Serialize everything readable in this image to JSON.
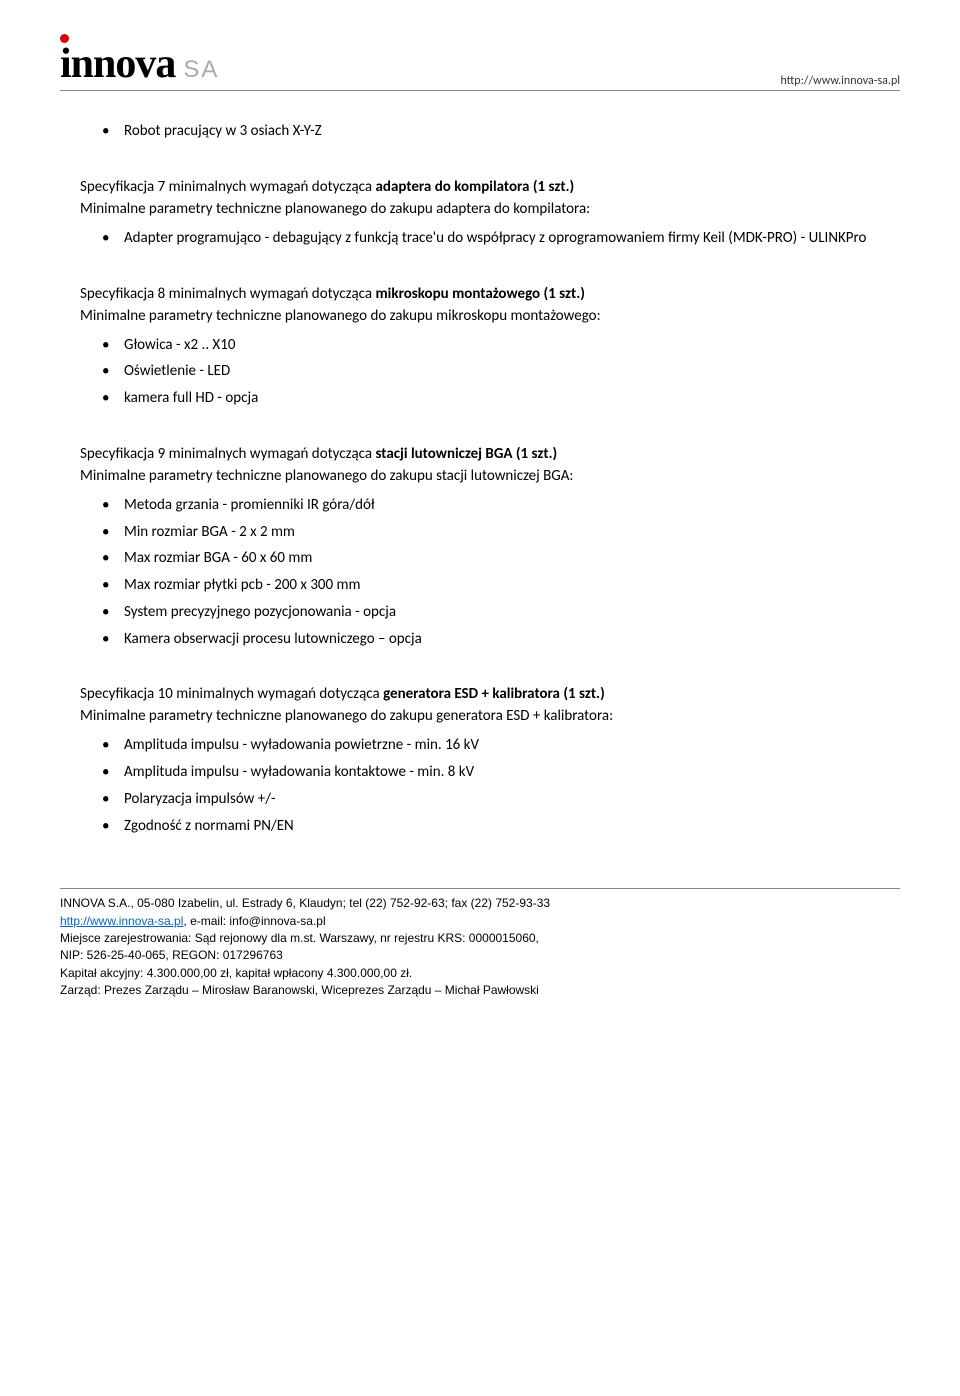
{
  "header": {
    "logo_text": "innova",
    "logo_suffix": "SA",
    "url": "http://www.innova-sa.pl"
  },
  "top_bullet": "Robot pracujący w 3 osiach X-Y-Z",
  "spec7": {
    "heading_prefix": "Specyfikacja 7 minimalnych wymagań dotycząca ",
    "heading_bold": "adaptera do kompilatora (1 szt.)",
    "intro": "Minimalne parametry techniczne planowanego do zakupu adaptera do kompilatora:",
    "items": [
      "Adapter programująco - debagujący z funkcją trace'u do współpracy z oprogramowaniem firmy Keil (MDK-PRO) - ULINKPro"
    ]
  },
  "spec8": {
    "heading_prefix": "Specyfikacja 8 minimalnych wymagań dotycząca ",
    "heading_bold": "mikroskopu montażowego (1 szt.)",
    "intro": "Minimalne parametry techniczne planowanego do zakupu mikroskopu montażowego:",
    "items": [
      "Głowica - x2 .. X10",
      "Oświetlenie - LED",
      "kamera full HD - opcja"
    ]
  },
  "spec9": {
    "heading_prefix": "Specyfikacja 9 minimalnych wymagań dotycząca ",
    "heading_bold": "stacji lutowniczej BGA (1 szt.)",
    "intro": "Minimalne parametry techniczne planowanego do zakupu stacji lutowniczej BGA:",
    "items": [
      "Metoda grzania - promienniki IR góra/dół",
      "Min rozmiar BGA - 2 x 2 mm",
      "Max rozmiar BGA - 60 x 60 mm",
      "Max rozmiar płytki pcb - 200 x 300 mm",
      "System precyzyjnego pozycjonowania - opcja",
      "Kamera obserwacji procesu lutowniczego – opcja"
    ]
  },
  "spec10": {
    "heading_prefix": "Specyfikacja 10 minimalnych wymagań dotycząca ",
    "heading_bold": "generatora ESD + kalibratora (1 szt.)",
    "intro": "Minimalne parametry techniczne planowanego do zakupu generatora ESD + kalibratora:",
    "items": [
      "Amplituda impulsu - wyładowania powietrzne - min. 16 kV",
      "Amplituda impulsu - wyładowania kontaktowe - min. 8 kV",
      "Polaryzacja impulsów +/-",
      "Zgodność z normami PN/EN"
    ]
  },
  "footer": {
    "line1": "INNOVA S.A., 05-080 Izabelin, ul. Estrady 6, Klaudyn; tel (22) 752-92-63; fax (22) 752-93-33",
    "link_text": "http://www.innova-sa.pl",
    "line2_rest": ", e-mail: info@innova-sa.pl",
    "line3": "Miejsce zarejestrowania: Sąd rejonowy dla m.st. Warszawy, nr rejestru KRS: 0000015060,",
    "line4": "NIP: 526-25-40-065, REGON: 017296763",
    "line5": "Kapitał akcyjny: 4.300.000,00 zł, kapitał wpłacony 4.300.000,00 zł.",
    "line6": "Zarząd: Prezes Zarządu – Mirosław Baranowski,  Wiceprezes Zarządu –  Michał Pawłowski"
  }
}
